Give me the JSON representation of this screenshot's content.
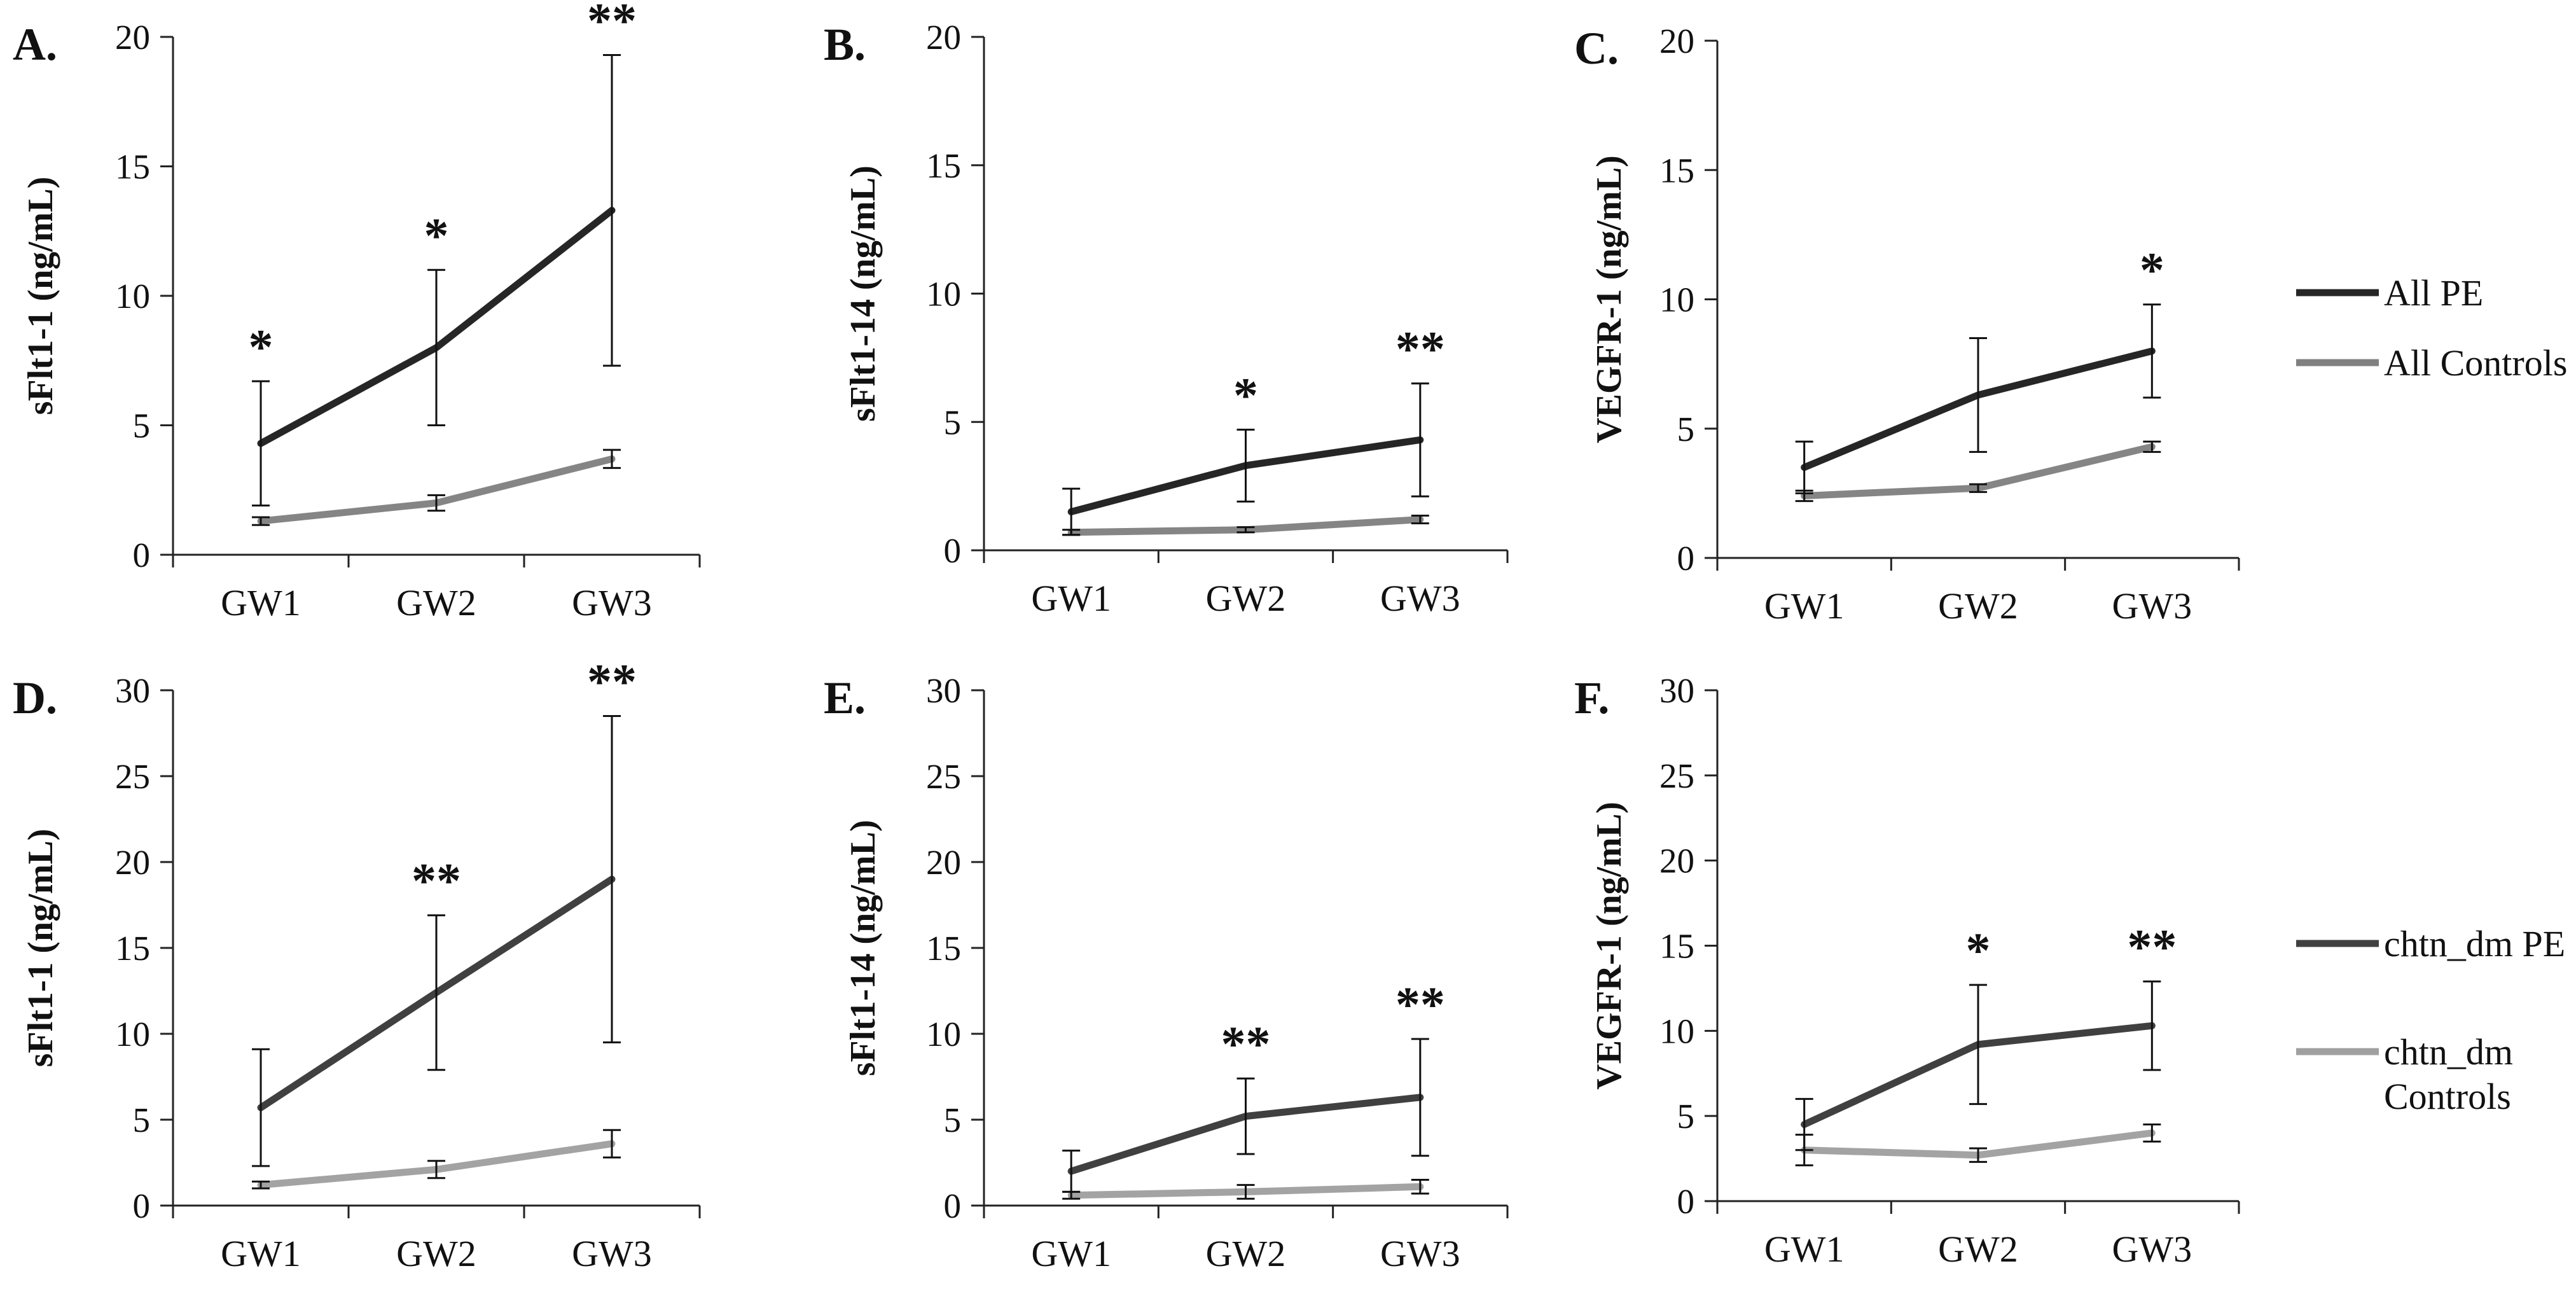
{
  "figure": {
    "legend_top": [
      {
        "label": "All PE",
        "color": "#262626"
      },
      {
        "label": "All Controls",
        "color": "#808080"
      }
    ],
    "legend_bottom": [
      {
        "label": "chtn_dm PE",
        "color": "#404040"
      },
      {
        "label": [
          "chtn_dm",
          "Controls"
        ],
        "color": "#a0a0a0"
      }
    ]
  },
  "chart_data": [
    {
      "panel": "A.",
      "type": "line",
      "ylabel": "sFlt1-1 (ng/mL)",
      "categories": [
        "GW1",
        "GW2",
        "GW3"
      ],
      "ylim": [
        0,
        20
      ],
      "yticks": [
        0,
        5,
        10,
        15,
        20
      ],
      "series": [
        {
          "name": "All PE",
          "values": [
            4.3,
            8.0,
            13.3
          ],
          "errors": [
            2.4,
            3.0,
            6.0
          ]
        },
        {
          "name": "All Controls",
          "values": [
            1.3,
            2.0,
            3.7
          ],
          "errors": [
            0.15,
            0.3,
            0.35
          ]
        }
      ],
      "annotations": [
        "*",
        "*",
        "**"
      ]
    },
    {
      "panel": "B.",
      "type": "line",
      "ylabel": "sFlt1-14 (ng/mL)",
      "categories": [
        "GW1",
        "GW2",
        "GW3"
      ],
      "ylim": [
        0,
        20
      ],
      "yticks": [
        0,
        5,
        10,
        15,
        20
      ],
      "series": [
        {
          "name": "All PE",
          "values": [
            1.5,
            3.3,
            4.3
          ],
          "errors": [
            0.9,
            1.4,
            2.2
          ]
        },
        {
          "name": "All Controls",
          "values": [
            0.7,
            0.8,
            1.2
          ],
          "errors": [
            0.1,
            0.1,
            0.15
          ]
        }
      ],
      "annotations": [
        "",
        "*",
        "**"
      ]
    },
    {
      "panel": "C.",
      "type": "line",
      "ylabel": "VEGFR-1 (ng/mL)",
      "categories": [
        "GW1",
        "GW2",
        "GW3"
      ],
      "ylim": [
        0,
        20
      ],
      "yticks": [
        0,
        5,
        10,
        15,
        20
      ],
      "series": [
        {
          "name": "All PE",
          "values": [
            3.5,
            6.3,
            8.0
          ],
          "errors": [
            1.0,
            2.2,
            1.8
          ]
        },
        {
          "name": "All Controls",
          "values": [
            2.4,
            2.7,
            4.3
          ],
          "errors": [
            0.2,
            0.15,
            0.2
          ]
        }
      ],
      "annotations": [
        "",
        "",
        "*"
      ]
    },
    {
      "panel": "D.",
      "type": "line",
      "ylabel": "sFlt1-1 (ng/mL)",
      "categories": [
        "GW1",
        "GW2",
        "GW3"
      ],
      "ylim": [
        0,
        30
      ],
      "yticks": [
        0,
        5,
        10,
        15,
        20,
        25,
        30
      ],
      "series": [
        {
          "name": "chtn_dm PE",
          "values": [
            5.7,
            12.4,
            19.0
          ],
          "errors": [
            3.4,
            4.5,
            9.5
          ]
        },
        {
          "name": "chtn_dm Controls",
          "values": [
            1.2,
            2.1,
            3.6
          ],
          "errors": [
            0.2,
            0.5,
            0.8
          ]
        }
      ],
      "annotations": [
        "",
        "**",
        "**"
      ]
    },
    {
      "panel": "E.",
      "type": "line",
      "ylabel": "sFlt1-14 (ng/mL)",
      "categories": [
        "GW1",
        "GW2",
        "GW3"
      ],
      "ylim": [
        0,
        30
      ],
      "yticks": [
        0,
        5,
        10,
        15,
        20,
        25,
        30
      ],
      "series": [
        {
          "name": "chtn_dm PE",
          "values": [
            2.0,
            5.2,
            6.3
          ],
          "errors": [
            1.2,
            2.2,
            3.4
          ]
        },
        {
          "name": "chtn_dm Controls",
          "values": [
            0.6,
            0.8,
            1.1
          ],
          "errors": [
            0.2,
            0.4,
            0.4
          ]
        }
      ],
      "annotations": [
        "",
        "**",
        "**"
      ]
    },
    {
      "panel": "F.",
      "type": "line",
      "ylabel": "VEGFR-1 (ng/mL)",
      "categories": [
        "GW1",
        "GW2",
        "GW3"
      ],
      "ylim": [
        0,
        30
      ],
      "yticks": [
        0,
        5,
        10,
        15,
        20,
        25,
        30
      ],
      "series": [
        {
          "name": "chtn_dm PE",
          "values": [
            4.5,
            9.2,
            10.3
          ],
          "errors": [
            1.5,
            3.5,
            2.6
          ]
        },
        {
          "name": "chtn_dm Controls",
          "values": [
            3.0,
            2.7,
            4.0
          ],
          "errors": [
            0.9,
            0.4,
            0.5
          ]
        }
      ],
      "annotations": [
        "",
        "*",
        "**"
      ]
    }
  ]
}
